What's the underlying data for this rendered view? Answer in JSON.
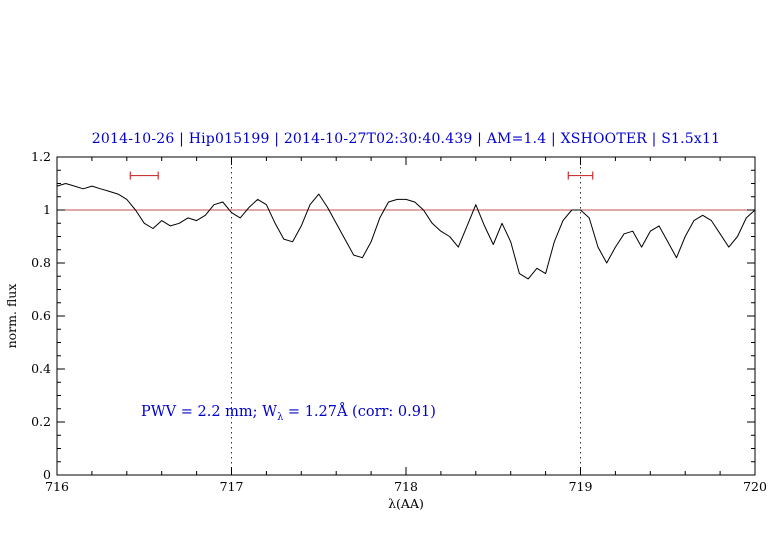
{
  "page": {
    "background": "#ffffff"
  },
  "title": {
    "text": "2014-10-26 | Hip015199 | 2014-10-27T02:30:40.439 | AM=1.4 | XSHOOTER | S1.5x11",
    "color": "#0000cc"
  },
  "annotation": {
    "prefix": "PWV = 2.2 mm; W",
    "sub": "λ",
    "suffix": " = 1.27Å (corr: 0.91)",
    "color": "#0000cc"
  },
  "chart_data": {
    "type": "line",
    "title": "2014-10-26 | Hip015199 | 2014-10-27T02:30:40.439 | AM=1.4 | XSHOOTER | S1.5x11",
    "xlabel": "λ(AA)",
    "ylabel": "norm. flux",
    "xlim": [
      716,
      720
    ],
    "ylim": [
      0,
      1.2
    ],
    "x_ticks": [
      716,
      717,
      718,
      719,
      720
    ],
    "x_tick_labels": [
      "716",
      "717",
      "718",
      "719",
      "720"
    ],
    "y_ticks": [
      0,
      0.2,
      0.4,
      0.6,
      0.8,
      1,
      1.2
    ],
    "y_tick_labels": [
      "0",
      "0.2",
      "0.4",
      "0.6",
      "0.8",
      "1",
      "1.2"
    ],
    "grid": false,
    "legend": "none",
    "line_color": "#000000",
    "frame_color": "#000000",
    "reference_lines": {
      "horizontal": {
        "y": 1.0,
        "color": "#c45252"
      },
      "vertical_dotted": {
        "x": [
          717,
          719
        ],
        "color": "#333333"
      }
    },
    "range_markers": [
      {
        "x_start": 716.42,
        "x_end": 716.58,
        "y": 1.13,
        "color": "#cc3333"
      },
      {
        "x_start": 718.93,
        "x_end": 719.07,
        "y": 1.13,
        "color": "#cc3333"
      }
    ],
    "series": [
      {
        "name": "normalized spectrum",
        "color": "#000000",
        "x": [
          716.0,
          716.05,
          716.1,
          716.15,
          716.2,
          716.25,
          716.3,
          716.35,
          716.4,
          716.45,
          716.5,
          716.55,
          716.6,
          716.65,
          716.7,
          716.75,
          716.8,
          716.85,
          716.9,
          716.95,
          717.0,
          717.05,
          717.1,
          717.15,
          717.2,
          717.25,
          717.3,
          717.35,
          717.4,
          717.45,
          717.5,
          717.55,
          717.6,
          717.65,
          717.7,
          717.75,
          717.8,
          717.85,
          717.9,
          717.95,
          718.0,
          718.05,
          718.1,
          718.15,
          718.2,
          718.25,
          718.3,
          718.35,
          718.4,
          718.45,
          718.5,
          718.55,
          718.6,
          718.65,
          718.7,
          718.75,
          718.8,
          718.85,
          718.9,
          718.95,
          719.0,
          719.05,
          719.1,
          719.15,
          719.2,
          719.25,
          719.3,
          719.35,
          719.4,
          719.45,
          719.5,
          719.55,
          719.6,
          719.65,
          719.7,
          719.75,
          719.8,
          719.85,
          719.9,
          719.95,
          720.0
        ],
        "y": [
          1.09,
          1.1,
          1.09,
          1.08,
          1.09,
          1.08,
          1.07,
          1.06,
          1.04,
          1.0,
          0.95,
          0.93,
          0.96,
          0.94,
          0.95,
          0.97,
          0.96,
          0.98,
          1.02,
          1.03,
          0.99,
          0.97,
          1.01,
          1.04,
          1.02,
          0.95,
          0.89,
          0.88,
          0.94,
          1.02,
          1.06,
          1.01,
          0.95,
          0.89,
          0.83,
          0.82,
          0.88,
          0.97,
          1.03,
          1.04,
          1.04,
          1.03,
          1.0,
          0.95,
          0.92,
          0.9,
          0.86,
          0.94,
          1.02,
          0.94,
          0.87,
          0.95,
          0.88,
          0.76,
          0.74,
          0.78,
          0.76,
          0.88,
          0.96,
          1.0,
          1.0,
          0.97,
          0.86,
          0.8,
          0.86,
          0.91,
          0.92,
          0.86,
          0.92,
          0.94,
          0.88,
          0.82,
          0.9,
          0.96,
          0.98,
          0.96,
          0.91,
          0.86,
          0.9,
          0.97,
          1.0
        ]
      }
    ]
  }
}
